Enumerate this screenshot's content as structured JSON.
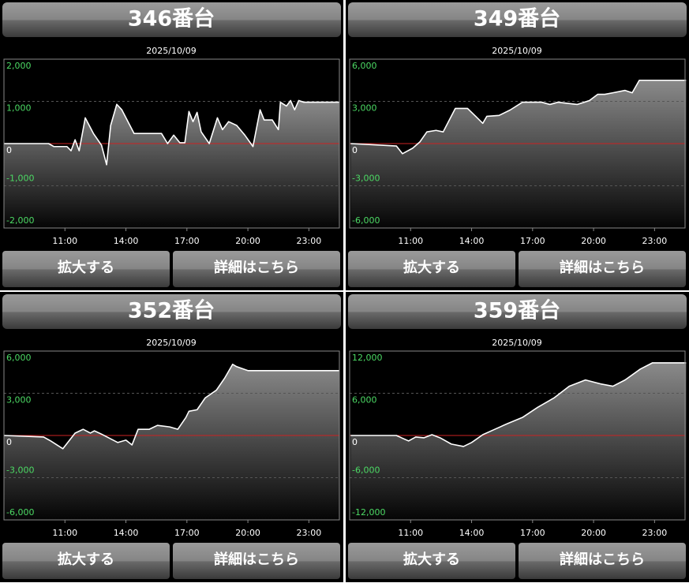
{
  "chart_data": [
    {
      "type": "line",
      "title": "346番台",
      "subtitle": "2025/10/09",
      "buttons": [
        "拡大する",
        "詳細はこちら"
      ],
      "x": [
        8.0,
        10.2,
        10.45,
        11.1,
        11.3,
        11.5,
        11.7,
        12.0,
        12.4,
        12.8,
        13.05,
        13.25,
        13.55,
        13.8,
        14.4,
        15.75,
        16.05,
        16.35,
        16.65,
        16.9,
        17.1,
        17.3,
        17.5,
        17.7,
        18.1,
        18.5,
        18.75,
        19.05,
        19.45,
        19.85,
        20.25,
        20.6,
        20.8,
        21.2,
        21.5,
        21.6,
        21.9,
        22.1,
        22.3,
        22.5,
        22.75,
        24.5
      ],
      "values": [
        0,
        0,
        -70,
        -70,
        -170,
        90,
        -170,
        610,
        240,
        -40,
        -500,
        430,
        930,
        800,
        240,
        240,
        0,
        200,
        20,
        20,
        760,
        520,
        740,
        280,
        0,
        610,
        330,
        520,
        430,
        200,
        -70,
        800,
        560,
        560,
        330,
        980,
        890,
        1020,
        800,
        1020,
        980,
        980
      ],
      "color": "#ffffff",
      "baseline_color": "#cc2222",
      "xlim": [
        8,
        24.5
      ],
      "xticks": [
        {
          "value": 11,
          "label": "11:00"
        },
        {
          "value": 14,
          "label": "14:00"
        },
        {
          "value": 17,
          "label": "17:00"
        },
        {
          "value": 20,
          "label": "20:00"
        },
        {
          "value": 23,
          "label": "23:00"
        }
      ],
      "ylim": [
        -2000,
        2000
      ],
      "yticks": [
        {
          "value": 2000,
          "label": "2,000"
        },
        {
          "value": 1000,
          "label": "1,000"
        },
        0,
        {
          "value": -1000,
          "label": "-1,000"
        },
        {
          "value": -2000,
          "label": "-2,000"
        }
      ],
      "grid": true
    },
    {
      "type": "line",
      "title": "349番台",
      "subtitle": "2025/10/09",
      "buttons": [
        "拡大する",
        "詳細はこちら"
      ],
      "x": [
        8.05,
        10.3,
        10.6,
        11.1,
        11.45,
        11.8,
        12.25,
        12.6,
        13.2,
        13.8,
        14.2,
        14.55,
        14.75,
        15.35,
        15.9,
        16.5,
        17.45,
        17.85,
        18.25,
        19.2,
        19.8,
        20.2,
        20.55,
        20.95,
        21.55,
        21.9,
        22.25,
        24.55
      ],
      "values": [
        0,
        -170,
        -720,
        -330,
        110,
        830,
        940,
        830,
        2500,
        2500,
        1940,
        1440,
        1940,
        2000,
        2390,
        2940,
        2940,
        2780,
        2940,
        2780,
        3060,
        3500,
        3500,
        3610,
        3780,
        3610,
        4500,
        4500
      ],
      "color": "#ffffff",
      "baseline_color": "#cc2222",
      "xlim": [
        8,
        24.5
      ],
      "xticks": [
        {
          "value": 11,
          "label": "11:00"
        },
        {
          "value": 14,
          "label": "14:00"
        },
        {
          "value": 17,
          "label": "17:00"
        },
        {
          "value": 20,
          "label": "20:00"
        },
        {
          "value": 23,
          "label": "23:00"
        }
      ],
      "ylim": [
        -6000,
        6000
      ],
      "yticks": [
        {
          "value": 6000,
          "label": "6,000"
        },
        {
          "value": 3000,
          "label": "3,000"
        },
        0,
        {
          "value": -3000,
          "label": "-3,000"
        },
        {
          "value": -6000,
          "label": "-6,000"
        }
      ],
      "grid": true
    },
    {
      "type": "line",
      "title": "352番台",
      "subtitle": "2025/10/09",
      "buttons": [
        "拡大する",
        "詳細はこちら"
      ],
      "x": [
        8.0,
        9.95,
        10.3,
        10.9,
        11.5,
        11.9,
        12.25,
        12.45,
        12.85,
        13.6,
        14.0,
        14.3,
        14.6,
        15.15,
        15.55,
        16.15,
        16.55,
        16.95,
        17.1,
        17.5,
        17.9,
        18.45,
        18.85,
        19.25,
        19.45,
        20.0,
        24.5
      ],
      "values": [
        0,
        -110,
        -390,
        -940,
        170,
        440,
        170,
        330,
        60,
        -500,
        -330,
        -670,
        440,
        440,
        720,
        610,
        440,
        1280,
        1720,
        1830,
        2670,
        3220,
        4060,
        5060,
        4890,
        4610,
        4610
      ],
      "color": "#ffffff",
      "baseline_color": "#cc2222",
      "xlim": [
        8,
        24.5
      ],
      "xticks": [
        {
          "value": 11,
          "label": "11:00"
        },
        {
          "value": 14,
          "label": "14:00"
        },
        {
          "value": 17,
          "label": "17:00"
        },
        {
          "value": 20,
          "label": "20:00"
        },
        {
          "value": 23,
          "label": "23:00"
        }
      ],
      "ylim": [
        -6000,
        6000
      ],
      "yticks": [
        {
          "value": 6000,
          "label": "6,000"
        },
        {
          "value": 3000,
          "label": "3,000"
        },
        0,
        {
          "value": -3000,
          "label": "-3,000"
        },
        {
          "value": -6000,
          "label": "-6,000"
        }
      ],
      "grid": true
    },
    {
      "type": "line",
      "title": "359番台",
      "subtitle": "2025/10/09",
      "buttons": [
        "拡大する",
        "詳細はこちら"
      ],
      "x": [
        8.05,
        10.3,
        10.9,
        11.25,
        11.65,
        12.05,
        12.45,
        13.0,
        13.6,
        14.0,
        14.55,
        15.15,
        15.75,
        16.5,
        17.25,
        18.05,
        18.8,
        19.6,
        20.35,
        20.95,
        21.55,
        22.3,
        22.9,
        24.55
      ],
      "values": [
        0,
        0,
        -780,
        -220,
        -330,
        110,
        -330,
        -1220,
        -1560,
        -1000,
        110,
        890,
        1670,
        2560,
        4000,
        5330,
        7000,
        7890,
        7330,
        7000,
        7890,
        9440,
        10330,
        10330
      ],
      "color": "#ffffff",
      "baseline_color": "#cc2222",
      "xlim": [
        8,
        24.5
      ],
      "xticks": [
        {
          "value": 11,
          "label": "11:00"
        },
        {
          "value": 14,
          "label": "14:00"
        },
        {
          "value": 17,
          "label": "17:00"
        },
        {
          "value": 20,
          "label": "20:00"
        },
        {
          "value": 23,
          "label": "23:00"
        }
      ],
      "ylim": [
        -12000,
        12000
      ],
      "yticks": [
        {
          "value": 12000,
          "label": "12,000"
        },
        {
          "value": 6000,
          "label": "6,000"
        },
        0,
        {
          "value": -6000,
          "label": "-6,000"
        },
        {
          "value": -12000,
          "label": "-12,000"
        }
      ],
      "grid": true
    }
  ]
}
